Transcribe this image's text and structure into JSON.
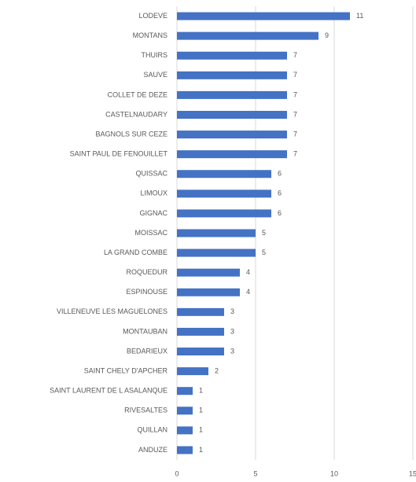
{
  "chart_data": {
    "type": "bar",
    "orientation": "horizontal",
    "categories": [
      "LODEVE",
      "MONTANS",
      "THUIRS",
      "SAUVE",
      "COLLET DE DEZE",
      "CASTELNAUDARY",
      "BAGNOLS SUR CEZE",
      "SAINT PAUL DE FENOUILLET",
      "QUISSAC",
      "LIMOUX",
      "GIGNAC",
      "MOISSAC",
      "LA GRAND COMBE",
      "ROQUEDUR",
      "ESPINOUSE",
      "VILLENEUVE LES MAGUELONES",
      "MONTAUBAN",
      "BEDARIEUX",
      "SAINT CHELY D'APCHER",
      "SAINT LAURENT DE L ASALANQUE",
      "RIVESALTES",
      "QUILLAN",
      "ANDUZE"
    ],
    "values": [
      11,
      9,
      7,
      7,
      7,
      7,
      7,
      7,
      6,
      6,
      6,
      5,
      5,
      4,
      4,
      3,
      3,
      3,
      2,
      1,
      1,
      1,
      1
    ],
    "color": "#4472c4",
    "xlim": [
      0,
      15
    ],
    "xticks": [
      0,
      5,
      10,
      15
    ],
    "grid": true
  }
}
